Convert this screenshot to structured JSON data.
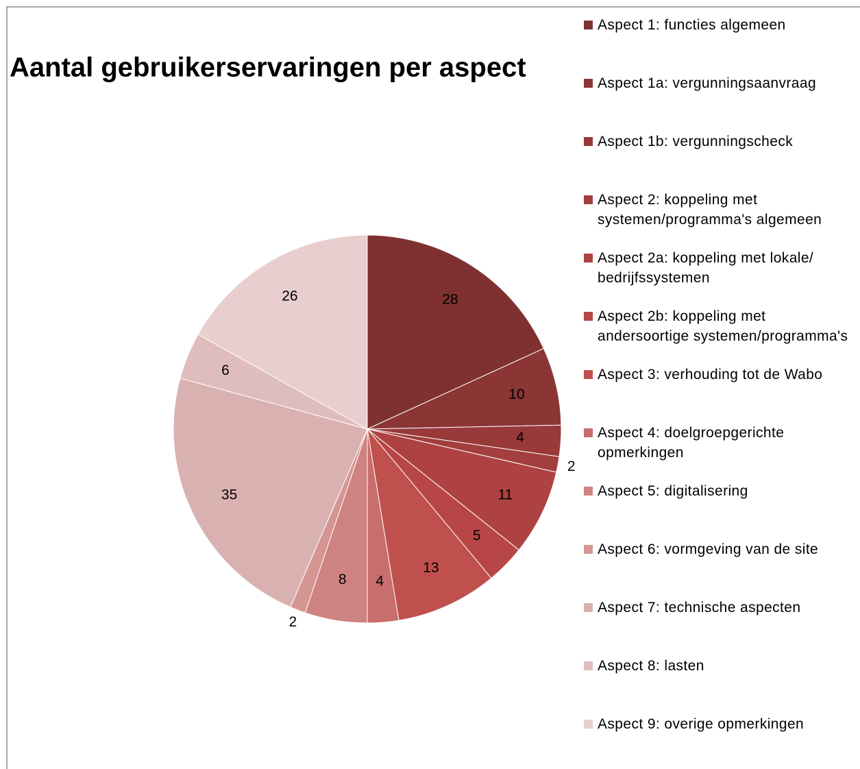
{
  "chart_data": {
    "type": "pie",
    "title": "Aantal gebruikerservaringen per aspect",
    "categories": [
      "Aspect 1: functies algemeen",
      "Aspect 1a: vergunningsaanvraag",
      "Aspect 1b: vergunningscheck",
      "Aspect 2: koppeling met systemen/programma's algemeen",
      "Aspect 2a: koppeling met lokale/ bedrijfssystemen",
      "Aspect 2b: koppeling met andersoortige systemen/programma's",
      "Aspect 3: verhouding tot de Wabo",
      "Aspect 4: doelgroepgerichte opmerkingen",
      "Aspect 5: digitalisering",
      "Aspect 6: vormgeving van de site",
      "Aspect 7: technische aspecten",
      "Aspect 8: lasten",
      "Aspect 9: overige opmerkingen"
    ],
    "values": [
      28,
      10,
      4,
      2,
      11,
      5,
      13,
      4,
      8,
      2,
      35,
      6,
      26
    ],
    "colors": [
      "#7f3131",
      "#8b3535",
      "#983a3a",
      "#a33e3e",
      "#ae4242",
      "#b84646",
      "#c0504d",
      "#c86e6c",
      "#cf8381",
      "#d49593",
      "#dab1b1",
      "#e0bdbd",
      "#e8cece"
    ],
    "legend": "right"
  }
}
